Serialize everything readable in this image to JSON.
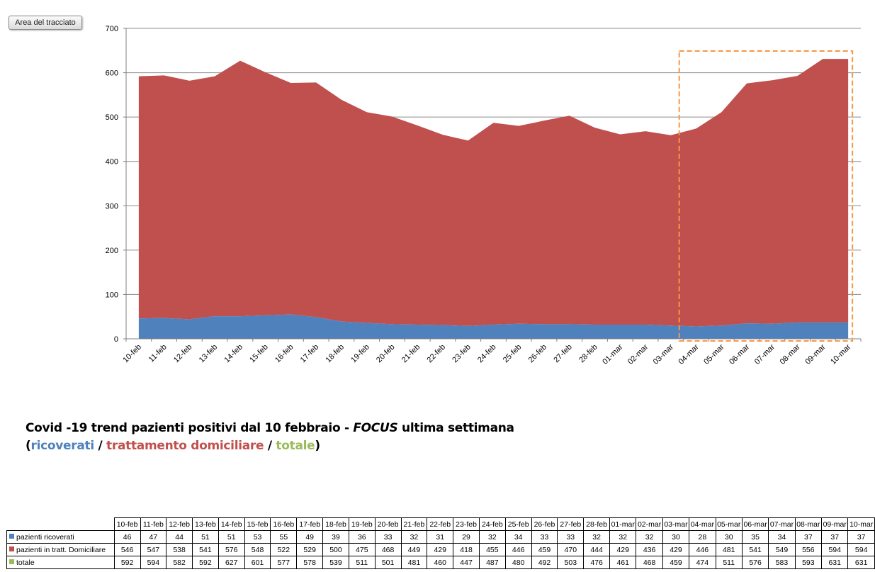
{
  "plot_area_button": "Area del tracciato",
  "caption": {
    "line1_prefix": "Covid -19 trend pazienti positivi dal 10 febbraio - ",
    "line1_focus": "FOCUS",
    "line1_suffix": " ultima settimana",
    "open_paren": "(",
    "ricoverati": "ricoverati",
    "sep1": " / ",
    "trattamento": "trattamento domiciliare",
    "sep2": " / ",
    "totale": "totale",
    "close_paren": ")"
  },
  "colors": {
    "ricoverati": "#4f81bd",
    "domiciliare": "#c0504d",
    "totale": "#9bbb59",
    "focus_box": "#f79646"
  },
  "chart_data": {
    "type": "area",
    "stacked": true,
    "categories": [
      "10-feb",
      "11-feb",
      "12-feb",
      "13-feb",
      "14-feb",
      "15-feb",
      "16-feb",
      "17-feb",
      "18-feb",
      "19-feb",
      "20-feb",
      "21-feb",
      "22-feb",
      "23-feb",
      "24-feb",
      "25-feb",
      "26-feb",
      "27-feb",
      "28-feb",
      "01-mar",
      "02-mar",
      "03-mar",
      "04-mar",
      "05-mar",
      "06-mar",
      "07-mar",
      "08-mar",
      "09-mar",
      "10-mar"
    ],
    "series": [
      {
        "name": "pazienti ricoverati",
        "values": [
          46,
          47,
          44,
          51,
          51,
          53,
          55,
          49,
          39,
          36,
          33,
          32,
          31,
          29,
          32,
          34,
          33,
          33,
          32,
          32,
          32,
          30,
          28,
          30,
          35,
          34,
          37,
          37,
          37
        ]
      },
      {
        "name": "pazienti in tratt. Domiciliare",
        "values": [
          546,
          547,
          538,
          541,
          576,
          548,
          522,
          529,
          500,
          475,
          468,
          449,
          429,
          418,
          455,
          446,
          459,
          470,
          444,
          429,
          436,
          429,
          446,
          481,
          541,
          549,
          556,
          594,
          594
        ]
      },
      {
        "name": "totale",
        "values": [
          592,
          594,
          582,
          592,
          627,
          601,
          577,
          578,
          539,
          511,
          501,
          481,
          460,
          447,
          487,
          480,
          492,
          503,
          476,
          461,
          468,
          459,
          474,
          511,
          576,
          583,
          593,
          631,
          631
        ]
      }
    ],
    "ylim": [
      0,
      700
    ],
    "yticks": [
      0,
      100,
      200,
      300,
      400,
      500,
      600,
      700
    ],
    "grid": true,
    "focus_range": [
      "04-mar",
      "10-mar"
    ]
  },
  "table": {
    "dates": [
      "10-feb",
      "11-feb",
      "12-feb",
      "13-feb",
      "14-feb",
      "15-feb",
      "16-feb",
      "17-feb",
      "18-feb",
      "19-feb",
      "20-feb",
      "21-feb",
      "22-feb",
      "23-feb",
      "24-feb",
      "25-feb",
      "26-feb",
      "27-feb",
      "28-feb",
      "01-mar",
      "02-mar",
      "03-mar",
      "04-mar",
      "05-mar",
      "06-mar",
      "07-mar",
      "08-mar",
      "09-mar",
      "10-mar"
    ],
    "rows": [
      {
        "label": "pazienti ricoverati",
        "color": "#4f81bd",
        "values": [
          46,
          47,
          44,
          51,
          51,
          53,
          55,
          49,
          39,
          36,
          33,
          32,
          31,
          29,
          32,
          34,
          33,
          33,
          32,
          32,
          32,
          30,
          28,
          30,
          35,
          34,
          37,
          37,
          37
        ]
      },
      {
        "label": "pazienti in tratt. Domiciliare",
        "color": "#c0504d",
        "values": [
          546,
          547,
          538,
          541,
          576,
          548,
          522,
          529,
          500,
          475,
          468,
          449,
          429,
          418,
          455,
          446,
          459,
          470,
          444,
          429,
          436,
          429,
          446,
          481,
          541,
          549,
          556,
          594,
          594
        ]
      },
      {
        "label": "totale",
        "color": "#9bbb59",
        "values": [
          592,
          594,
          582,
          592,
          627,
          601,
          577,
          578,
          539,
          511,
          501,
          481,
          460,
          447,
          487,
          480,
          492,
          503,
          476,
          461,
          468,
          459,
          474,
          511,
          576,
          583,
          593,
          631,
          631
        ]
      }
    ]
  }
}
